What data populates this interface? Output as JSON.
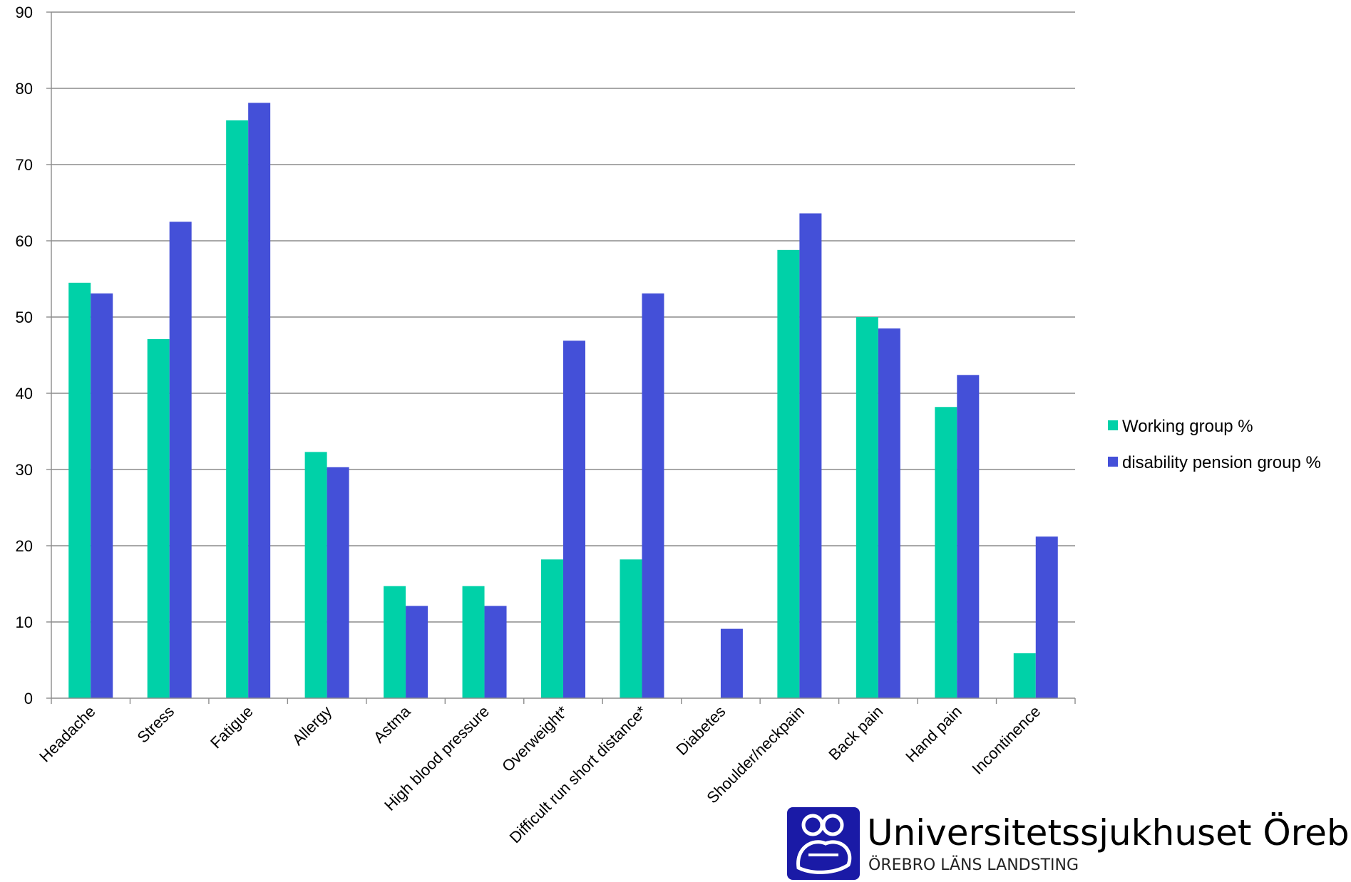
{
  "chart_data": {
    "type": "bar",
    "title": "",
    "xlabel": "",
    "ylabel": "",
    "ylim": [
      0,
      90
    ],
    "yticks": [
      0,
      10,
      20,
      30,
      40,
      50,
      60,
      70,
      80,
      90
    ],
    "grid": true,
    "legend_position": "right",
    "categories": [
      "Headache",
      "Stress",
      "Fatigue",
      "Allergy",
      "Astma",
      "High blood pressure",
      "Overweight*",
      "Difficult run short distance*",
      "Diabetes",
      "Shoulder/neckpain",
      "Back pain",
      "Hand pain",
      "Incontinence"
    ],
    "series": [
      {
        "name": "Working group %",
        "color": "#00d1a8",
        "values": [
          54.5,
          47.1,
          75.8,
          32.3,
          14.7,
          14.7,
          18.2,
          18.2,
          0,
          58.8,
          50.0,
          38.2,
          5.9
        ]
      },
      {
        "name": "disability pension group %",
        "color": "#4450d8",
        "values": [
          53.1,
          62.5,
          78.1,
          30.3,
          12.1,
          12.1,
          46.9,
          53.1,
          9.1,
          63.6,
          48.5,
          42.4,
          21.2
        ]
      }
    ]
  },
  "logo": {
    "name": "Universitetssjukhuset Örebro",
    "subtitle": "ÖREBRO LÄNS LANDSTING",
    "icon": "hospital-emblem-icon",
    "color": "#1a1aa6"
  }
}
